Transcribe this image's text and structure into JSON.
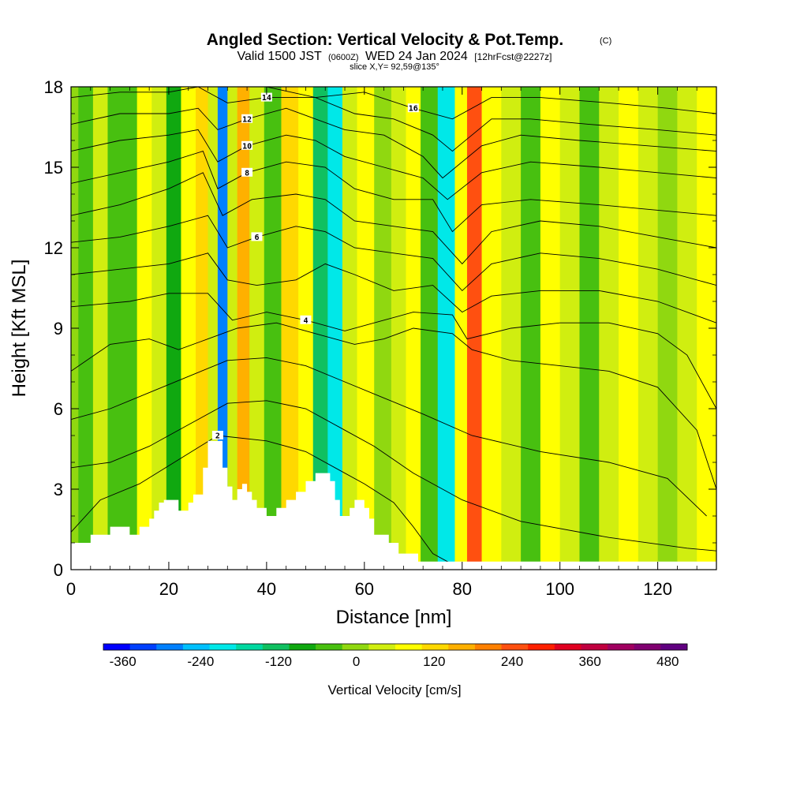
{
  "header": {
    "title": "Angled Section: Vertical Velocity & Pot.Temp.",
    "title_mark": "(C)",
    "subtitle_prefix": "Valid 1500 JST",
    "subtitle_zone": "(0600Z)",
    "subtitle_date": "WED 24 Jan 2024",
    "subtitle_fcst": "[12hrFcst@2227z]",
    "slice": "slice X,Y= 92,59@135°"
  },
  "chart_data": {
    "type": "heatmap",
    "xlabel": "Distance [nm]",
    "ylabel": "Height [Kft MSL]",
    "xlim": [
      0,
      132
    ],
    "ylim": [
      0,
      18
    ],
    "x_ticks": [
      0,
      20,
      40,
      60,
      80,
      100,
      120
    ],
    "y_ticks": [
      0,
      3,
      6,
      9,
      12,
      15,
      18
    ],
    "colorbar": {
      "label": "Vertical Velocity [cm/s]",
      "ticks": [
        -360,
        -240,
        -120,
        0,
        120,
        240,
        360,
        480
      ],
      "range": [
        -390,
        510
      ],
      "bin_colors": [
        "#0000ff",
        "#0040ff",
        "#0080ff",
        "#00c0ff",
        "#00e8e8",
        "#00d8a0",
        "#10c060",
        "#10a810",
        "#48c010",
        "#90d810",
        "#d0ee10",
        "#ffff00",
        "#ffd800",
        "#ffb000",
        "#ff8000",
        "#ff5010",
        "#ff2000",
        "#e00020",
        "#c00040",
        "#a00060",
        "#800070",
        "#600080"
      ]
    },
    "velocity_bands": [
      {
        "x": 0,
        "vel": 0
      },
      {
        "x": 3,
        "vel": -40
      },
      {
        "x": 6,
        "vel": 40
      },
      {
        "x": 9,
        "vel": -30
      },
      {
        "x": 12,
        "vel": -60
      },
      {
        "x": 15,
        "vel": 100
      },
      {
        "x": 18,
        "vel": 20
      },
      {
        "x": 21,
        "vel": -80
      },
      {
        "x": 24,
        "vel": 60
      },
      {
        "x": 27,
        "vel": 140
      },
      {
        "x": 29,
        "vel": 40
      },
      {
        "x": 31,
        "vel": -280
      },
      {
        "x": 33,
        "vel": 20
      },
      {
        "x": 35,
        "vel": 160
      },
      {
        "x": 38,
        "vel": 40
      },
      {
        "x": 41,
        "vel": -60
      },
      {
        "x": 45,
        "vel": 140
      },
      {
        "x": 48,
        "vel": 60
      },
      {
        "x": 51,
        "vel": -120
      },
      {
        "x": 54,
        "vel": -200
      },
      {
        "x": 57,
        "vel": 40
      },
      {
        "x": 60,
        "vel": 100
      },
      {
        "x": 64,
        "vel": -20
      },
      {
        "x": 67,
        "vel": 40
      },
      {
        "x": 70,
        "vel": 80
      },
      {
        "x": 73,
        "vel": -60
      },
      {
        "x": 77,
        "vel": -220
      },
      {
        "x": 80,
        "vel": 60
      },
      {
        "x": 82,
        "vel": 260
      },
      {
        "x": 86,
        "vel": 80
      },
      {
        "x": 90,
        "vel": 20
      },
      {
        "x": 94,
        "vel": -30
      },
      {
        "x": 98,
        "vel": 100
      },
      {
        "x": 102,
        "vel": 40
      },
      {
        "x": 106,
        "vel": -40
      },
      {
        "x": 110,
        "vel": 40
      },
      {
        "x": 114,
        "vel": 60
      },
      {
        "x": 118,
        "vel": 20
      },
      {
        "x": 122,
        "vel": -20
      },
      {
        "x": 126,
        "vel": 40
      },
      {
        "x": 130,
        "vel": 80
      },
      {
        "x": 132,
        "vel": 60
      }
    ],
    "isentropes": [
      {
        "label": "2",
        "points": [
          [
            0,
            1.4
          ],
          [
            6,
            2.6
          ],
          [
            14,
            3.2
          ],
          [
            22,
            4.1
          ],
          [
            30,
            5.0
          ],
          [
            40,
            4.8
          ],
          [
            48,
            4.4
          ],
          [
            54,
            3.8
          ],
          [
            60,
            3.2
          ],
          [
            66,
            2.5
          ],
          [
            70,
            1.6
          ],
          [
            74,
            0.6
          ],
          [
            78,
            0.2
          ]
        ]
      },
      {
        "label": "",
        "points": [
          [
            0,
            3.8
          ],
          [
            8,
            4.0
          ],
          [
            16,
            4.6
          ],
          [
            24,
            5.4
          ],
          [
            32,
            6.2
          ],
          [
            40,
            6.3
          ],
          [
            48,
            6.0
          ],
          [
            56,
            5.2
          ],
          [
            62,
            4.6
          ],
          [
            70,
            3.6
          ],
          [
            80,
            2.6
          ],
          [
            92,
            1.8
          ],
          [
            110,
            1.2
          ],
          [
            126,
            0.8
          ],
          [
            132,
            0.7
          ]
        ]
      },
      {
        "label": "",
        "points": [
          [
            0,
            5.6
          ],
          [
            8,
            6.0
          ],
          [
            16,
            6.6
          ],
          [
            24,
            7.2
          ],
          [
            32,
            7.8
          ],
          [
            40,
            7.9
          ],
          [
            48,
            7.6
          ],
          [
            56,
            7.0
          ],
          [
            64,
            6.4
          ],
          [
            72,
            5.8
          ],
          [
            82,
            5.0
          ],
          [
            96,
            4.4
          ],
          [
            110,
            4.0
          ],
          [
            122,
            3.4
          ],
          [
            130,
            2.0
          ]
        ]
      },
      {
        "label": "",
        "points": [
          [
            0,
            7.4
          ],
          [
            8,
            8.4
          ],
          [
            16,
            8.6
          ],
          [
            22,
            8.2
          ],
          [
            28,
            8.6
          ],
          [
            34,
            9.0
          ],
          [
            42,
            9.2
          ],
          [
            50,
            8.8
          ],
          [
            58,
            8.4
          ],
          [
            64,
            8.6
          ],
          [
            70,
            9.0
          ],
          [
            78,
            8.8
          ],
          [
            82,
            8.2
          ],
          [
            90,
            7.8
          ],
          [
            100,
            7.6
          ],
          [
            110,
            7.4
          ],
          [
            120,
            6.8
          ],
          [
            128,
            5.2
          ],
          [
            132,
            3.0
          ]
        ]
      },
      {
        "label": "4",
        "points": [
          [
            0,
            9.8
          ],
          [
            12,
            10.0
          ],
          [
            20,
            10.3
          ],
          [
            28,
            10.3
          ],
          [
            33,
            9.3
          ],
          [
            40,
            9.6
          ],
          [
            48,
            9.3
          ],
          [
            56,
            8.9
          ],
          [
            64,
            9.3
          ],
          [
            70,
            9.6
          ],
          [
            78,
            9.5
          ],
          [
            81,
            8.6
          ],
          [
            90,
            9.0
          ],
          [
            100,
            9.2
          ],
          [
            110,
            9.2
          ],
          [
            120,
            8.8
          ],
          [
            126,
            8.0
          ],
          [
            132,
            6.0
          ]
        ]
      },
      {
        "label": "",
        "points": [
          [
            0,
            11.0
          ],
          [
            10,
            11.2
          ],
          [
            20,
            11.4
          ],
          [
            28,
            11.8
          ],
          [
            32,
            10.8
          ],
          [
            38,
            10.6
          ],
          [
            46,
            10.8
          ],
          [
            52,
            11.4
          ],
          [
            58,
            11.0
          ],
          [
            66,
            10.4
          ],
          [
            74,
            10.6
          ],
          [
            80,
            9.6
          ],
          [
            86,
            10.2
          ],
          [
            96,
            10.4
          ],
          [
            108,
            10.4
          ],
          [
            120,
            10.0
          ],
          [
            132,
            9.2
          ]
        ]
      },
      {
        "label": "6",
        "points": [
          [
            0,
            12.2
          ],
          [
            10,
            12.4
          ],
          [
            20,
            12.8
          ],
          [
            28,
            13.2
          ],
          [
            32,
            12.0
          ],
          [
            38,
            12.4
          ],
          [
            46,
            12.8
          ],
          [
            52,
            12.6
          ],
          [
            58,
            12.0
          ],
          [
            66,
            11.8
          ],
          [
            74,
            11.6
          ],
          [
            80,
            10.4
          ],
          [
            86,
            11.4
          ],
          [
            96,
            11.8
          ],
          [
            108,
            11.6
          ],
          [
            120,
            11.2
          ],
          [
            132,
            10.6
          ]
        ]
      },
      {
        "label": "",
        "points": [
          [
            0,
            13.2
          ],
          [
            10,
            13.6
          ],
          [
            20,
            14.2
          ],
          [
            27,
            14.8
          ],
          [
            31,
            13.2
          ],
          [
            37,
            13.8
          ],
          [
            46,
            14.0
          ],
          [
            52,
            13.8
          ],
          [
            58,
            13.0
          ],
          [
            66,
            12.8
          ],
          [
            74,
            12.6
          ],
          [
            80,
            11.4
          ],
          [
            86,
            12.6
          ],
          [
            96,
            13.0
          ],
          [
            108,
            12.8
          ],
          [
            120,
            12.4
          ],
          [
            132,
            12.0
          ]
        ]
      },
      {
        "label": "8",
        "points": [
          [
            0,
            14.4
          ],
          [
            10,
            14.8
          ],
          [
            20,
            15.2
          ],
          [
            27,
            15.6
          ],
          [
            30,
            14.2
          ],
          [
            36,
            14.8
          ],
          [
            44,
            15.2
          ],
          [
            52,
            15.0
          ],
          [
            58,
            14.2
          ],
          [
            66,
            13.8
          ],
          [
            74,
            13.8
          ],
          [
            78,
            12.6
          ],
          [
            84,
            13.6
          ],
          [
            94,
            13.8
          ],
          [
            108,
            13.6
          ],
          [
            120,
            13.4
          ],
          [
            132,
            13.2
          ]
        ]
      },
      {
        "label": "10",
        "points": [
          [
            0,
            15.6
          ],
          [
            10,
            16.0
          ],
          [
            20,
            16.2
          ],
          [
            26,
            16.4
          ],
          [
            30,
            15.2
          ],
          [
            36,
            15.8
          ],
          [
            44,
            16.2
          ],
          [
            50,
            16.0
          ],
          [
            56,
            15.4
          ],
          [
            64,
            15.0
          ],
          [
            72,
            14.6
          ],
          [
            77,
            13.8
          ],
          [
            84,
            14.8
          ],
          [
            94,
            15.2
          ],
          [
            108,
            15.0
          ],
          [
            120,
            14.8
          ],
          [
            132,
            14.6
          ]
        ]
      },
      {
        "label": "12",
        "points": [
          [
            0,
            16.6
          ],
          [
            10,
            17.0
          ],
          [
            20,
            17.0
          ],
          [
            26,
            17.2
          ],
          [
            30,
            16.4
          ],
          [
            36,
            16.8
          ],
          [
            44,
            17.2
          ],
          [
            50,
            16.8
          ],
          [
            56,
            16.4
          ],
          [
            64,
            16.2
          ],
          [
            72,
            15.4
          ],
          [
            76,
            14.6
          ],
          [
            84,
            15.8
          ],
          [
            92,
            16.2
          ],
          [
            104,
            16.0
          ],
          [
            118,
            15.8
          ],
          [
            132,
            15.6
          ]
        ]
      },
      {
        "label": "14",
        "points": [
          [
            0,
            17.6
          ],
          [
            10,
            17.8
          ],
          [
            20,
            17.8
          ],
          [
            26,
            18.0
          ],
          [
            32,
            17.4
          ],
          [
            40,
            17.6
          ],
          [
            50,
            17.6
          ],
          [
            58,
            17.0
          ],
          [
            66,
            16.8
          ],
          [
            74,
            16.2
          ],
          [
            78,
            15.6
          ],
          [
            86,
            16.8
          ],
          [
            94,
            16.8
          ],
          [
            106,
            16.6
          ],
          [
            120,
            16.4
          ],
          [
            132,
            16.2
          ]
        ]
      },
      {
        "label": "16",
        "points": [
          [
            40,
            18.0
          ],
          [
            50,
            17.6
          ],
          [
            60,
            17.8
          ],
          [
            70,
            17.2
          ],
          [
            78,
            16.8
          ],
          [
            86,
            17.6
          ],
          [
            96,
            17.6
          ],
          [
            110,
            17.4
          ],
          [
            122,
            17.2
          ],
          [
            132,
            17.0
          ]
        ]
      }
    ],
    "terrain": [
      [
        0,
        1.0
      ],
      [
        4,
        1.0
      ],
      [
        4,
        1.3
      ],
      [
        8,
        1.3
      ],
      [
        8,
        1.6
      ],
      [
        12,
        1.6
      ],
      [
        12,
        1.3
      ],
      [
        14,
        1.3
      ],
      [
        14,
        1.6
      ],
      [
        16,
        1.6
      ],
      [
        16,
        1.9
      ],
      [
        17,
        1.9
      ],
      [
        17,
        2.2
      ],
      [
        18,
        2.2
      ],
      [
        18,
        2.5
      ],
      [
        19,
        2.5
      ],
      [
        19,
        2.6
      ],
      [
        22,
        2.6
      ],
      [
        22,
        2.2
      ],
      [
        24,
        2.2
      ],
      [
        24,
        2.5
      ],
      [
        25,
        2.5
      ],
      [
        25,
        2.8
      ],
      [
        27,
        2.8
      ],
      [
        27,
        3.8
      ],
      [
        28,
        3.8
      ],
      [
        28,
        4.8
      ],
      [
        31,
        4.8
      ],
      [
        31,
        3.8
      ],
      [
        32,
        3.8
      ],
      [
        32,
        3.1
      ],
      [
        33,
        3.1
      ],
      [
        33,
        2.6
      ],
      [
        34,
        2.6
      ],
      [
        34,
        3.0
      ],
      [
        35,
        3.0
      ],
      [
        35,
        3.2
      ],
      [
        36,
        3.2
      ],
      [
        36,
        2.9
      ],
      [
        37,
        2.9
      ],
      [
        37,
        2.6
      ],
      [
        38,
        2.6
      ],
      [
        38,
        2.3
      ],
      [
        40,
        2.3
      ],
      [
        40,
        2.0
      ],
      [
        42,
        2.0
      ],
      [
        42,
        2.3
      ],
      [
        44,
        2.3
      ],
      [
        44,
        2.6
      ],
      [
        46,
        2.6
      ],
      [
        46,
        2.9
      ],
      [
        48,
        2.9
      ],
      [
        48,
        3.3
      ],
      [
        50,
        3.3
      ],
      [
        50,
        3.6
      ],
      [
        53,
        3.6
      ],
      [
        53,
        3.3
      ],
      [
        54,
        3.3
      ],
      [
        54,
        2.6
      ],
      [
        55,
        2.6
      ],
      [
        55,
        2.0
      ],
      [
        57,
        2.0
      ],
      [
        57,
        2.3
      ],
      [
        58,
        2.3
      ],
      [
        58,
        2.6
      ],
      [
        60,
        2.6
      ],
      [
        60,
        2.3
      ],
      [
        61,
        2.3
      ],
      [
        61,
        1.9
      ],
      [
        62,
        1.9
      ],
      [
        62,
        1.3
      ],
      [
        65,
        1.3
      ],
      [
        65,
        1.0
      ],
      [
        67,
        1.0
      ],
      [
        67,
        0.6
      ],
      [
        71,
        0.6
      ],
      [
        71,
        0.3
      ],
      [
        132,
        0.3
      ],
      [
        132,
        0
      ],
      [
        0,
        0
      ]
    ]
  }
}
